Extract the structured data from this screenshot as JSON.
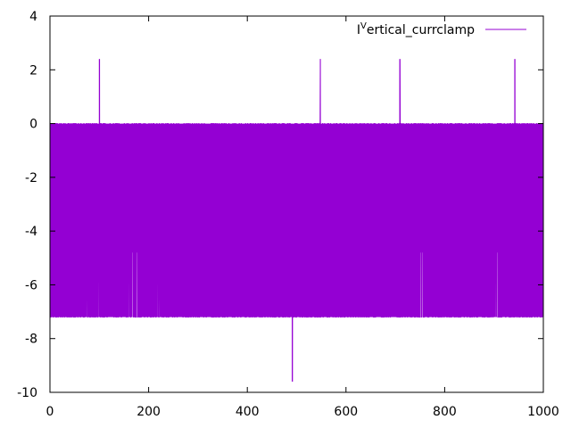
{
  "chart_data": {
    "type": "line",
    "title": "",
    "xlabel": "",
    "ylabel": "",
    "xlim": [
      0,
      1000
    ],
    "ylim": [
      -10,
      4
    ],
    "x_ticks": [
      0,
      200,
      400,
      600,
      800,
      1000
    ],
    "y_ticks": [
      -10,
      -8,
      -6,
      -4,
      -2,
      0,
      2,
      4
    ],
    "grid": false,
    "legend_position": "top-right",
    "series": [
      {
        "name": "I",
        "name_superscript": "V",
        "name_suffix": "ertical_currclamp",
        "color": "#9400d3",
        "baseline_high": 0,
        "baseline_low": -7.2,
        "partial_low": -4.8,
        "x_range": [
          0,
          1000
        ],
        "spikes": [
          {
            "x": 100,
            "y": 2.4
          },
          {
            "x": 548,
            "y": 2.4
          },
          {
            "x": 709,
            "y": 2.4
          },
          {
            "x": 942,
            "y": 2.4
          },
          {
            "x": 491,
            "y": -9.6
          }
        ],
        "partial_drops_x": [
          75,
          98,
          124,
          160,
          167,
          176,
          218,
          222,
          751,
          755,
          903,
          906,
          1000
        ]
      }
    ]
  }
}
